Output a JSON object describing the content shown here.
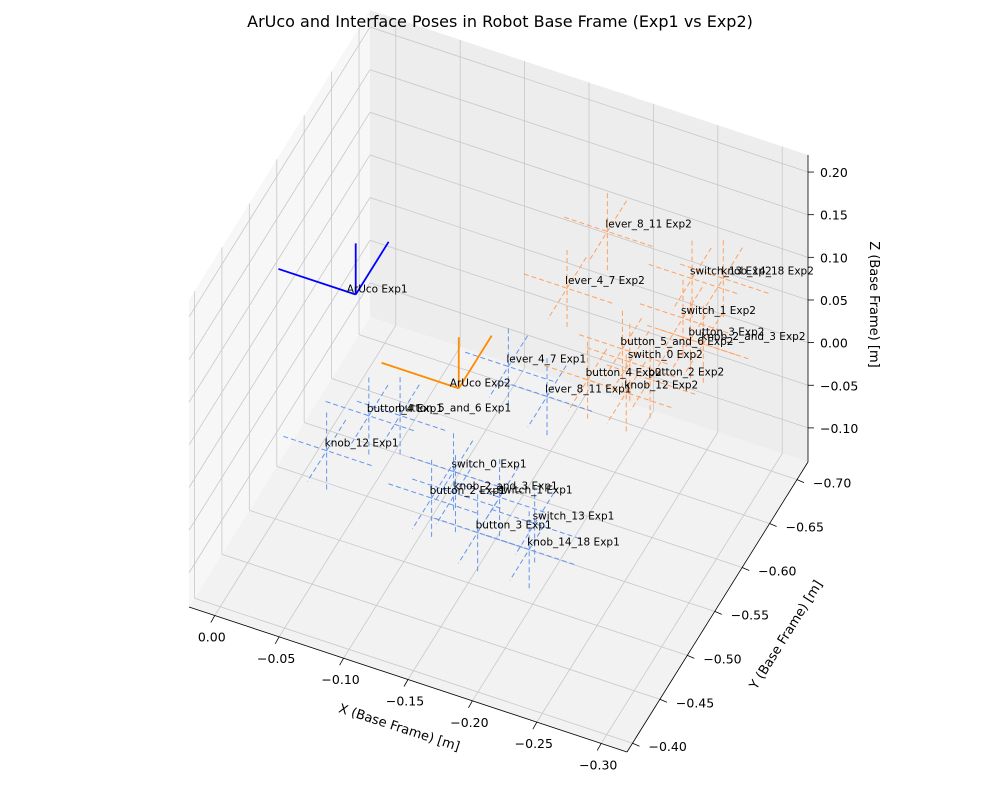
{
  "chart_data": {
    "type": "scatter3d",
    "title": "ArUco and Interface Poses in Robot Base Frame (Exp1 vs Exp2)",
    "xlabel": "X (Base Frame) [m]",
    "ylabel": "Y (Base Frame) [m]",
    "zlabel": "Z (Base Frame) [m]",
    "xlim": [
      0.02,
      -0.32
    ],
    "ylim": [
      -0.39,
      -0.72
    ],
    "zlim": [
      -0.14,
      0.22
    ],
    "x_ticks": [
      "0.00",
      "−0.05",
      "−0.10",
      "−0.15",
      "−0.20",
      "−0.25",
      "−0.30"
    ],
    "y_ticks": [
      "−0.40",
      "−0.45",
      "−0.50",
      "−0.55",
      "−0.60",
      "−0.65",
      "−0.70"
    ],
    "z_ticks": [
      "−0.10",
      "−0.05",
      "0.00",
      "0.05",
      "0.10",
      "0.15",
      "0.20"
    ],
    "grid": true,
    "colors": {
      "aruco_exp1": "#0000ff",
      "aruco_exp2": "#ff8c00",
      "exp1": "#6495ed",
      "exp2": "#ffa060"
    },
    "aruco": [
      {
        "name": "ArUco Exp1",
        "series": "Exp1",
        "x": -0.02,
        "y": -0.6,
        "z": 0.03
      },
      {
        "name": "ArUco Exp2",
        "series": "Exp2",
        "x": -0.1,
        "y": -0.6,
        "z": -0.04
      }
    ],
    "series": [
      {
        "name": "Exp1",
        "points": [
          {
            "label": "lever_4_7 Exp1",
            "x": -0.13,
            "y": -0.62,
            "z": -0.02
          },
          {
            "label": "lever_8_11 Exp1",
            "x": -0.16,
            "y": -0.62,
            "z": -0.04
          },
          {
            "label": "button_4 Exp1",
            "x": -0.06,
            "y": -0.53,
            "z": -0.02
          },
          {
            "label": "button_5_and_6 Exp1",
            "x": -0.08,
            "y": -0.54,
            "z": -0.02
          },
          {
            "label": "knob_12 Exp1",
            "x": -0.04,
            "y": -0.5,
            "z": -0.04
          },
          {
            "label": "switch_0 Exp1",
            "x": -0.13,
            "y": -0.52,
            "z": -0.04
          },
          {
            "label": "button_2 Exp1",
            "x": -0.13,
            "y": -0.48,
            "z": -0.03
          },
          {
            "label": "knob_2_and_3 Exp1",
            "x": -0.14,
            "y": -0.5,
            "z": -0.04
          },
          {
            "label": "switch_1 Exp1",
            "x": -0.17,
            "y": -0.51,
            "z": -0.04
          },
          {
            "label": "switch_13 Exp1",
            "x": -0.21,
            "y": -0.48,
            "z": -0.02
          },
          {
            "label": "button_3 Exp1",
            "x": -0.17,
            "y": -0.47,
            "z": -0.04
          },
          {
            "label": "knob_14_18 Exp1",
            "x": -0.21,
            "y": -0.47,
            "z": -0.04
          }
        ]
      },
      {
        "name": "Exp2",
        "points": [
          {
            "label": "lever_8_11 Exp2",
            "x": -0.16,
            "y": -0.73,
            "z": 0.04
          },
          {
            "label": "switch_13 Exp2",
            "x": -0.23,
            "y": -0.72,
            "z": 0.03
          },
          {
            "label": "knob_14_18 Exp2",
            "x": -0.25,
            "y": -0.73,
            "z": 0.03
          },
          {
            "label": "lever_4_7 Exp2",
            "x": -0.15,
            "y": -0.68,
            "z": 0.02
          },
          {
            "label": "switch_1 Exp2",
            "x": -0.24,
            "y": -0.68,
            "z": 0.03
          },
          {
            "label": "button_3 Exp2",
            "x": -0.25,
            "y": -0.67,
            "z": 0.02
          },
          {
            "label": "knob_2_and_3 Exp2",
            "x": -0.26,
            "y": -0.67,
            "z": 0.02
          },
          {
            "label": "switch_0 Exp2",
            "x": -0.22,
            "y": -0.63,
            "z": 0.02
          },
          {
            "label": "button_2 Exp2",
            "x": -0.24,
            "y": -0.62,
            "z": 0.02
          },
          {
            "label": "button_5_and_6 Exp2",
            "x": -0.21,
            "y": -0.64,
            "z": 0.02
          },
          {
            "label": "button_4 Exp2",
            "x": -0.2,
            "y": -0.6,
            "z": 0.02
          },
          {
            "label": "knob_12 Exp2",
            "x": -0.23,
            "y": -0.6,
            "z": 0.02
          }
        ]
      }
    ]
  }
}
